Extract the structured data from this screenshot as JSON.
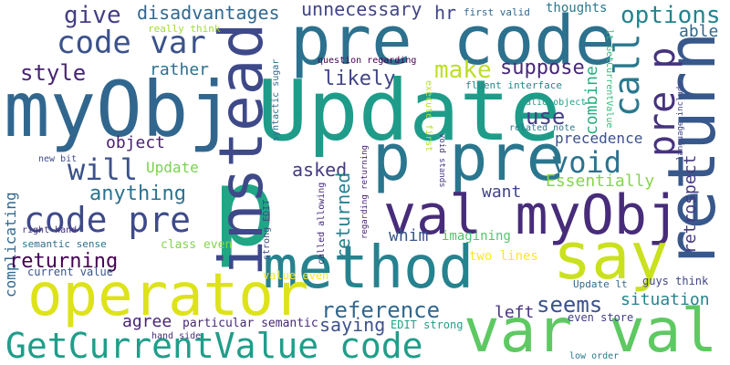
{
  "words": [
    {
      "text": "p",
      "color": "#21a685"
    },
    {
      "text": "pre code",
      "color": "#2c718e"
    },
    {
      "text": "myObj",
      "color": "#31678e"
    },
    {
      "text": "Update",
      "color": "#1e9c89"
    },
    {
      "text": "p pre",
      "color": "#2a768e"
    },
    {
      "text": "method",
      "color": "#26828e"
    },
    {
      "text": "instead",
      "color": "#3e4989"
    },
    {
      "text": "return",
      "color": "#38588c"
    },
    {
      "text": "val myObj",
      "color": "#472c7a"
    },
    {
      "text": "say",
      "color": "#cae11f"
    },
    {
      "text": "var val",
      "color": "#5ec962"
    },
    {
      "text": "operator",
      "color": "#dde318"
    },
    {
      "text": "GetCurrentValue code",
      "color": "#1f9e89"
    },
    {
      "text": "code var",
      "color": "#3b528b"
    },
    {
      "text": "code pre",
      "color": "#3e4a89"
    },
    {
      "text": "call",
      "color": "#2a788e"
    },
    {
      "text": "pre p",
      "color": "#46337e"
    },
    {
      "text": "style",
      "color": "#482475"
    },
    {
      "text": "give",
      "color": "#433e85"
    },
    {
      "text": "disadvantages",
      "color": "#31688e"
    },
    {
      "text": "unnecessary",
      "color": "#414487"
    },
    {
      "text": "hr",
      "color": "#414487"
    },
    {
      "text": "first valid",
      "color": "#31688e"
    },
    {
      "text": "thoughts",
      "color": "#2a788e"
    },
    {
      "text": "options",
      "color": "#25838e"
    },
    {
      "text": "able",
      "color": "#31688e"
    },
    {
      "text": "rather",
      "color": "#2d708e"
    },
    {
      "text": "likely",
      "color": "#414487"
    },
    {
      "text": "make",
      "color": "#bddf26"
    },
    {
      "text": "suppose",
      "color": "#482878"
    },
    {
      "text": "use",
      "color": "#433e85"
    },
    {
      "text": "combine",
      "color": "#29af7f"
    },
    {
      "text": "object",
      "color": "#481f70"
    },
    {
      "text": "precedence",
      "color": "#3b528b"
    },
    {
      "text": "void",
      "color": "#2c728e"
    },
    {
      "text": "will",
      "color": "#3b528b"
    },
    {
      "text": "Update",
      "color": "#7ad151"
    },
    {
      "text": "asked",
      "color": "#443a83"
    },
    {
      "text": "anything",
      "color": "#2c728e"
    },
    {
      "text": "returned",
      "color": "#26828e"
    },
    {
      "text": "Essentially",
      "color": "#86d549"
    },
    {
      "text": "want",
      "color": "#414487"
    },
    {
      "text": "retrospect",
      "color": "#443983"
    },
    {
      "text": "complicating",
      "color": "#31688e"
    },
    {
      "text": "returning",
      "color": "#440154"
    },
    {
      "text": "whim",
      "color": "#39568c"
    },
    {
      "text": "imagining",
      "color": "#52c569"
    },
    {
      "text": "reference",
      "color": "#31688e"
    },
    {
      "text": "seems",
      "color": "#3b528b"
    },
    {
      "text": "situation",
      "color": "#25838e"
    },
    {
      "text": "left",
      "color": "#46337e"
    },
    {
      "text": "agree",
      "color": "#482475"
    },
    {
      "text": "saying",
      "color": "#3b528b"
    },
    {
      "text": "particular semantic",
      "color": "#482878"
    },
    {
      "text": "semantic sense",
      "color": "#2e6e8e"
    },
    {
      "text": "class even",
      "color": "#84d44b"
    },
    {
      "text": "current value",
      "color": "#39558c"
    },
    {
      "text": "value even",
      "color": "#fde725"
    },
    {
      "text": "two lines",
      "color": "#fde725"
    },
    {
      "text": "EDIT strong",
      "color": "#1fa187"
    },
    {
      "text": "even store",
      "color": "#424086"
    },
    {
      "text": "guys think",
      "color": "#404588"
    },
    {
      "text": "Update lt",
      "color": "#31688e"
    },
    {
      "text": "low order",
      "color": "#2a788e"
    },
    {
      "text": "hand side",
      "color": "#472f7d"
    },
    {
      "text": "right hand",
      "color": "#46327e"
    },
    {
      "text": "new bit",
      "color": "#3e4c8a"
    },
    {
      "text": "really think",
      "color": "#a2da37"
    },
    {
      "text": "question regarding",
      "color": "#440154"
    },
    {
      "text": "fluent interface",
      "color": "#24878e"
    },
    {
      "text": "valid object",
      "color": "#1fa187"
    },
    {
      "text": "related note",
      "color": "#2a788e"
    },
    {
      "text": "syntactic sugar",
      "color": "#2f6b8e"
    },
    {
      "text": "execute first",
      "color": "#b5de2b"
    },
    {
      "text": "void stands",
      "color": "#443a83"
    },
    {
      "text": "regarding returning",
      "color": "#482173"
    },
    {
      "text": "called allowing",
      "color": "#472c7a"
    },
    {
      "text": "strong EDIT",
      "color": "#3e4a89"
    },
    {
      "text": "lt GetCurrentValue",
      "color": "#35b779"
    },
    {
      "text": "language include",
      "color": "#3f4788"
    }
  ]
}
